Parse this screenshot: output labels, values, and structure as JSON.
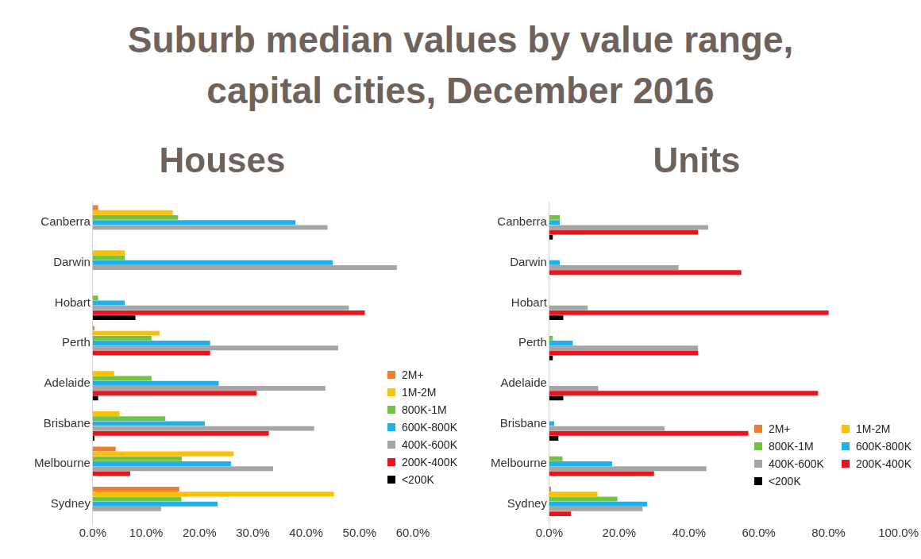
{
  "title": [
    "Suburb median values by value range,",
    "capital cities, December 2016"
  ],
  "chart_data": [
    {
      "type": "bar",
      "title": "Houses",
      "orientation": "horizontal",
      "grid": false,
      "legend": "lower right",
      "categories": [
        "Canberra",
        "Darwin",
        "Hobart",
        "Perth",
        "Adelaide",
        "Brisbane",
        "Melbourne",
        "Sydney"
      ],
      "xlim": [
        0,
        60
      ],
      "xticks": [
        {
          "value": 0,
          "label": "0.0%"
        },
        {
          "value": 10,
          "label": "10.0%"
        },
        {
          "value": 20,
          "label": "20.0%"
        },
        {
          "value": 30,
          "label": "30.0%"
        },
        {
          "value": 40,
          "label": "40.0%"
        },
        {
          "value": 50,
          "label": "50.0%"
        },
        {
          "value": 60,
          "label": "60.0%"
        }
      ],
      "series": [
        {
          "name": "2M+",
          "color": "#ed7d31",
          "values": [
            1,
            0,
            0,
            0.3,
            0,
            0,
            4.3,
            16.2
          ]
        },
        {
          "name": "1M-2M",
          "color": "#ffc000",
          "values": [
            15,
            6,
            0,
            12.5,
            4,
            5,
            26.4,
            45.2
          ]
        },
        {
          "name": "800K-1M",
          "color": "#70c442",
          "values": [
            16,
            6,
            1,
            11,
            11,
            13.6,
            16.7,
            16.6
          ]
        },
        {
          "name": "600K-800K",
          "color": "#1eb1ec",
          "values": [
            38,
            45,
            6,
            22,
            23.6,
            21,
            25.9,
            23.4
          ]
        },
        {
          "name": "400K-600K",
          "color": "#a5a5a5",
          "values": [
            44,
            57,
            48,
            46,
            43.6,
            41.5,
            33.8,
            12.8
          ]
        },
        {
          "name": "200K-400K",
          "color": "#e8141e",
          "values": [
            0,
            0,
            51,
            22,
            30.7,
            33,
            7,
            0
          ]
        },
        {
          "name": "<200K",
          "color": "#000000",
          "values": [
            0,
            0,
            8,
            0,
            1,
            0.3,
            0,
            0
          ]
        }
      ]
    },
    {
      "type": "bar",
      "title": "Units",
      "orientation": "horizontal",
      "grid": false,
      "legend": "lower right",
      "categories": [
        "Canberra",
        "Darwin",
        "Hobart",
        "Perth",
        "Adelaide",
        "Brisbane",
        "Melbourne",
        "Sydney"
      ],
      "xlim": [
        0,
        100
      ],
      "xticks": [
        {
          "value": 0,
          "label": "0.0%"
        },
        {
          "value": 20,
          "label": "20.0%"
        },
        {
          "value": 40,
          "label": "40.0%"
        },
        {
          "value": 60,
          "label": "60.0%"
        },
        {
          "value": 80,
          "label": "80.0%"
        },
        {
          "value": 100,
          "label": "100.0%"
        }
      ],
      "series": [
        {
          "name": "2M+",
          "color": "#ed7d31",
          "values": [
            0,
            0,
            0,
            0,
            0,
            0,
            0,
            0.5
          ]
        },
        {
          "name": "1M-2M",
          "color": "#ffc000",
          "values": [
            0,
            0,
            0,
            0,
            0,
            0,
            0,
            13.8
          ]
        },
        {
          "name": "800K-1M",
          "color": "#70c442",
          "values": [
            3,
            0,
            0,
            1,
            0,
            0,
            3.8,
            19.5
          ]
        },
        {
          "name": "600K-800K",
          "color": "#1eb1ec",
          "values": [
            3,
            3,
            0,
            6.7,
            0,
            1.4,
            18,
            28
          ]
        },
        {
          "name": "400K-600K",
          "color": "#a5a5a5",
          "values": [
            45.5,
            37,
            11,
            42.6,
            14,
            33,
            45,
            26.7
          ]
        },
        {
          "name": "200K-400K",
          "color": "#e8141e",
          "values": [
            42.6,
            55,
            80,
            42.6,
            77,
            57,
            30,
            6.2
          ]
        },
        {
          "name": "<200K",
          "color": "#000000",
          "values": [
            1,
            0,
            4,
            1,
            4,
            2.6,
            0,
            0
          ]
        }
      ]
    }
  ]
}
